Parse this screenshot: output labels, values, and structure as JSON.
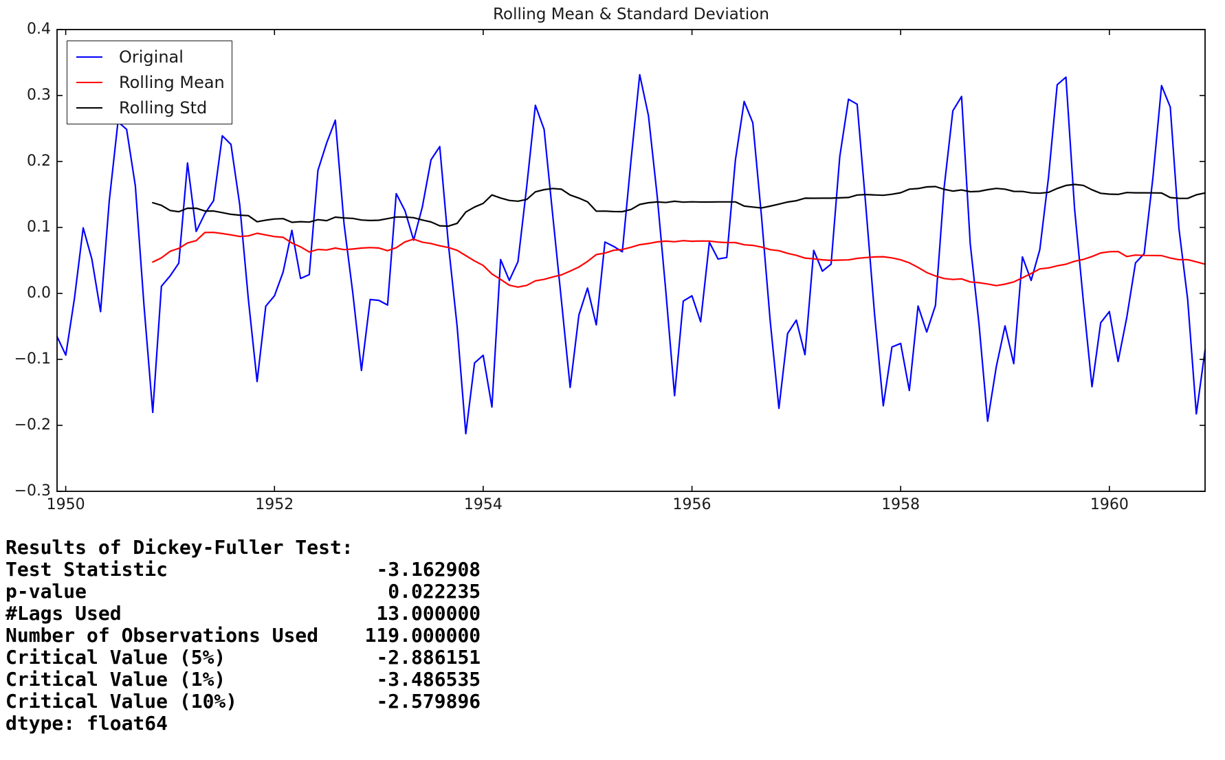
{
  "figure": {
    "title": "Rolling Mean & Standard Deviation",
    "legend": [
      {
        "label": "Original"
      },
      {
        "label": "Rolling Mean"
      },
      {
        "label": "Rolling Std"
      }
    ]
  },
  "chart_data": {
    "type": "line",
    "title": "Rolling Mean & Standard Deviation",
    "xlabel": "",
    "ylabel": "",
    "xlim": [
      1949.9167,
      1960.9167
    ],
    "ylim": [
      -0.3,
      0.4
    ],
    "grid": false,
    "legend_position": "upper left",
    "background": "#ffffff",
    "frame_color": "#000000",
    "xticks": [
      1950,
      1952,
      1954,
      1956,
      1958,
      1960
    ],
    "xticklabels": [
      "1950",
      "1952",
      "1954",
      "1956",
      "1958",
      "1960"
    ],
    "yticks": [
      -0.3,
      -0.2,
      -0.1,
      0.0,
      0.1,
      0.2,
      0.3,
      0.4
    ],
    "yticklabels": [
      "−0.3",
      "−0.2",
      "−0.1",
      "0.0",
      "0.1",
      "0.2",
      "0.3",
      "0.4"
    ],
    "series": [
      {
        "name": "Original",
        "color": "#0000ff",
        "x_start": 1949.9167,
        "x_step": 0.083333,
        "y": [
          -0.0655,
          -0.0935,
          -0.0076,
          0.0994,
          0.0522,
          -0.0276,
          0.1398,
          0.2602,
          0.2486,
          0.1629,
          -0.0186,
          -0.1804,
          0.0108,
          0.0266,
          0.0459,
          0.1977,
          0.094,
          0.1211,
          0.1406,
          0.239,
          0.2258,
          0.1347,
          -0.009,
          -0.1336,
          -0.0194,
          -0.0035,
          0.0326,
          0.0956,
          0.0227,
          0.0285,
          0.1866,
          0.2281,
          0.2626,
          0.1054,
          0.0017,
          -0.1168,
          -0.0093,
          -0.0105,
          -0.0176,
          0.1513,
          0.1254,
          0.0808,
          0.1311,
          0.2025,
          0.2226,
          0.0744,
          -0.0501,
          -0.2127,
          -0.1054,
          -0.0939,
          -0.1722,
          0.0514,
          0.0197,
          0.0482,
          0.1619,
          0.2852,
          0.2488,
          0.118,
          -0.0119,
          -0.1425,
          -0.0328,
          0.0081,
          -0.0476,
          0.0779,
          0.0713,
          0.0631,
          0.2025,
          0.3316,
          0.2696,
          0.1478,
          0.0029,
          -0.155,
          -0.0117,
          -0.0036,
          -0.043,
          0.0776,
          0.0522,
          0.0545,
          0.2024,
          0.291,
          0.2586,
          0.116,
          -0.0417,
          -0.1743,
          -0.0608,
          -0.0405,
          -0.0929,
          0.0652,
          0.0337,
          0.0444,
          0.2073,
          0.2944,
          0.2868,
          0.1312,
          -0.0314,
          -0.1703,
          -0.0813,
          -0.0758,
          -0.1472,
          -0.0191,
          -0.0585,
          -0.0182,
          0.1602,
          0.2768,
          0.2985,
          0.0753,
          -0.0457,
          -0.1937,
          -0.1105,
          -0.0492,
          -0.1066,
          0.0554,
          0.0197,
          0.0664,
          0.1763,
          0.3164,
          0.3278,
          0.128,
          -0.0113,
          -0.1415,
          -0.0445,
          -0.0275,
          -0.1031,
          -0.0365,
          0.0463,
          0.0602,
          0.1751,
          0.3151,
          0.2824,
          0.0982,
          -0.0092,
          -0.1827,
          -0.0858
        ]
      },
      {
        "name": "Rolling Mean",
        "color": "#ff0000",
        "x_start": 1950.8333,
        "x_step": 0.083333,
        "y": [
          0.0475,
          0.0539,
          0.0639,
          0.0683,
          0.0765,
          0.08,
          0.0924,
          0.0925,
          0.0907,
          0.0888,
          0.0864,
          0.0872,
          0.0911,
          0.0886,
          0.0861,
          0.085,
          0.0765,
          0.0706,
          0.0628,
          0.0667,
          0.0658,
          0.0688,
          0.0664,
          0.0673,
          0.0687,
          0.0695,
          0.0689,
          0.0648,
          0.0694,
          0.078,
          0.0823,
          0.0777,
          0.0756,
          0.0722,
          0.0696,
          0.0653,
          0.0573,
          0.0493,
          0.0424,
          0.0295,
          0.0212,
          0.0124,
          0.0096,
          0.0122,
          0.0191,
          0.0213,
          0.0249,
          0.0281,
          0.0339,
          0.04,
          0.0485,
          0.0589,
          0.0611,
          0.0654,
          0.0666,
          0.07,
          0.0739,
          0.0756,
          0.0781,
          0.0793,
          0.0783,
          0.08,
          0.0791,
          0.0795,
          0.0794,
          0.0778,
          0.0771,
          0.0771,
          0.0737,
          0.0728,
          0.0702,
          0.0664,
          0.0648,
          0.0607,
          0.0577,
          0.0535,
          0.0525,
          0.0509,
          0.0501,
          0.0505,
          0.0508,
          0.0531,
          0.0544,
          0.0553,
          0.0556,
          0.0539,
          0.0509,
          0.0464,
          0.0394,
          0.0317,
          0.0265,
          0.0226,
          0.0211,
          0.0221,
          0.0174,
          0.0162,
          0.0143,
          0.0118,
          0.0141,
          0.0174,
          0.0237,
          0.0302,
          0.0372,
          0.0386,
          0.0419,
          0.0443,
          0.0487,
          0.0516,
          0.0559,
          0.0614,
          0.0632,
          0.0635,
          0.0559,
          0.0581,
          0.0576,
          0.0575,
          0.0573,
          0.0536,
          0.0511,
          0.0513,
          0.0478,
          0.0444
        ]
      },
      {
        "name": "Rolling Std",
        "color": "#000000",
        "x_start": 1950.8333,
        "x_step": 0.083333,
        "y": [
          0.1375,
          0.1335,
          0.1257,
          0.1239,
          0.1292,
          0.1291,
          0.1249,
          0.1249,
          0.1225,
          0.1199,
          0.1186,
          0.1179,
          0.1086,
          0.111,
          0.1128,
          0.1133,
          0.1078,
          0.1087,
          0.1081,
          0.1118,
          0.1103,
          0.1156,
          0.1144,
          0.1138,
          0.1112,
          0.1105,
          0.1109,
          0.1133,
          0.1158,
          0.1158,
          0.1148,
          0.1113,
          0.1083,
          0.1025,
          0.102,
          0.1061,
          0.1233,
          0.1309,
          0.1365,
          0.1493,
          0.1446,
          0.1409,
          0.1398,
          0.1424,
          0.154,
          0.1573,
          0.1591,
          0.1579,
          0.1492,
          0.1445,
          0.1388,
          0.1247,
          0.1248,
          0.1241,
          0.124,
          0.1273,
          0.1349,
          0.1375,
          0.1386,
          0.1378,
          0.1397,
          0.1383,
          0.1389,
          0.1385,
          0.1385,
          0.1387,
          0.1388,
          0.1388,
          0.1324,
          0.1309,
          0.1296,
          0.1323,
          0.1353,
          0.1385,
          0.1405,
          0.1444,
          0.1443,
          0.1444,
          0.1444,
          0.1449,
          0.1454,
          0.1492,
          0.1499,
          0.1493,
          0.1487,
          0.1503,
          0.1526,
          0.158,
          0.159,
          0.1615,
          0.162,
          0.1578,
          0.1551,
          0.1569,
          0.1542,
          0.1547,
          0.1573,
          0.1592,
          0.158,
          0.1547,
          0.1546,
          0.1524,
          0.1519,
          0.1532,
          0.1591,
          0.1636,
          0.1652,
          0.1637,
          0.1571,
          0.1518,
          0.1505,
          0.1501,
          0.1529,
          0.1525,
          0.1525,
          0.1524,
          0.1522,
          0.1453,
          0.1442,
          0.1441,
          0.1495,
          0.1523
        ]
      }
    ]
  },
  "console": {
    "header": "Results of Dickey-Fuller Test:",
    "rows": [
      {
        "label": "Test Statistic",
        "value": "-3.162908"
      },
      {
        "label": "p-value",
        "value": "0.022235"
      },
      {
        "label": "#Lags Used",
        "value": "13.000000"
      },
      {
        "label": "Number of Observations Used",
        "value": "119.000000"
      },
      {
        "label": "Critical Value (5%)",
        "value": "-2.886151"
      },
      {
        "label": "Critical Value (1%)",
        "value": "-3.486535"
      },
      {
        "label": "Critical Value (10%)",
        "value": "-2.579896"
      }
    ],
    "footer": "dtype: float64"
  }
}
